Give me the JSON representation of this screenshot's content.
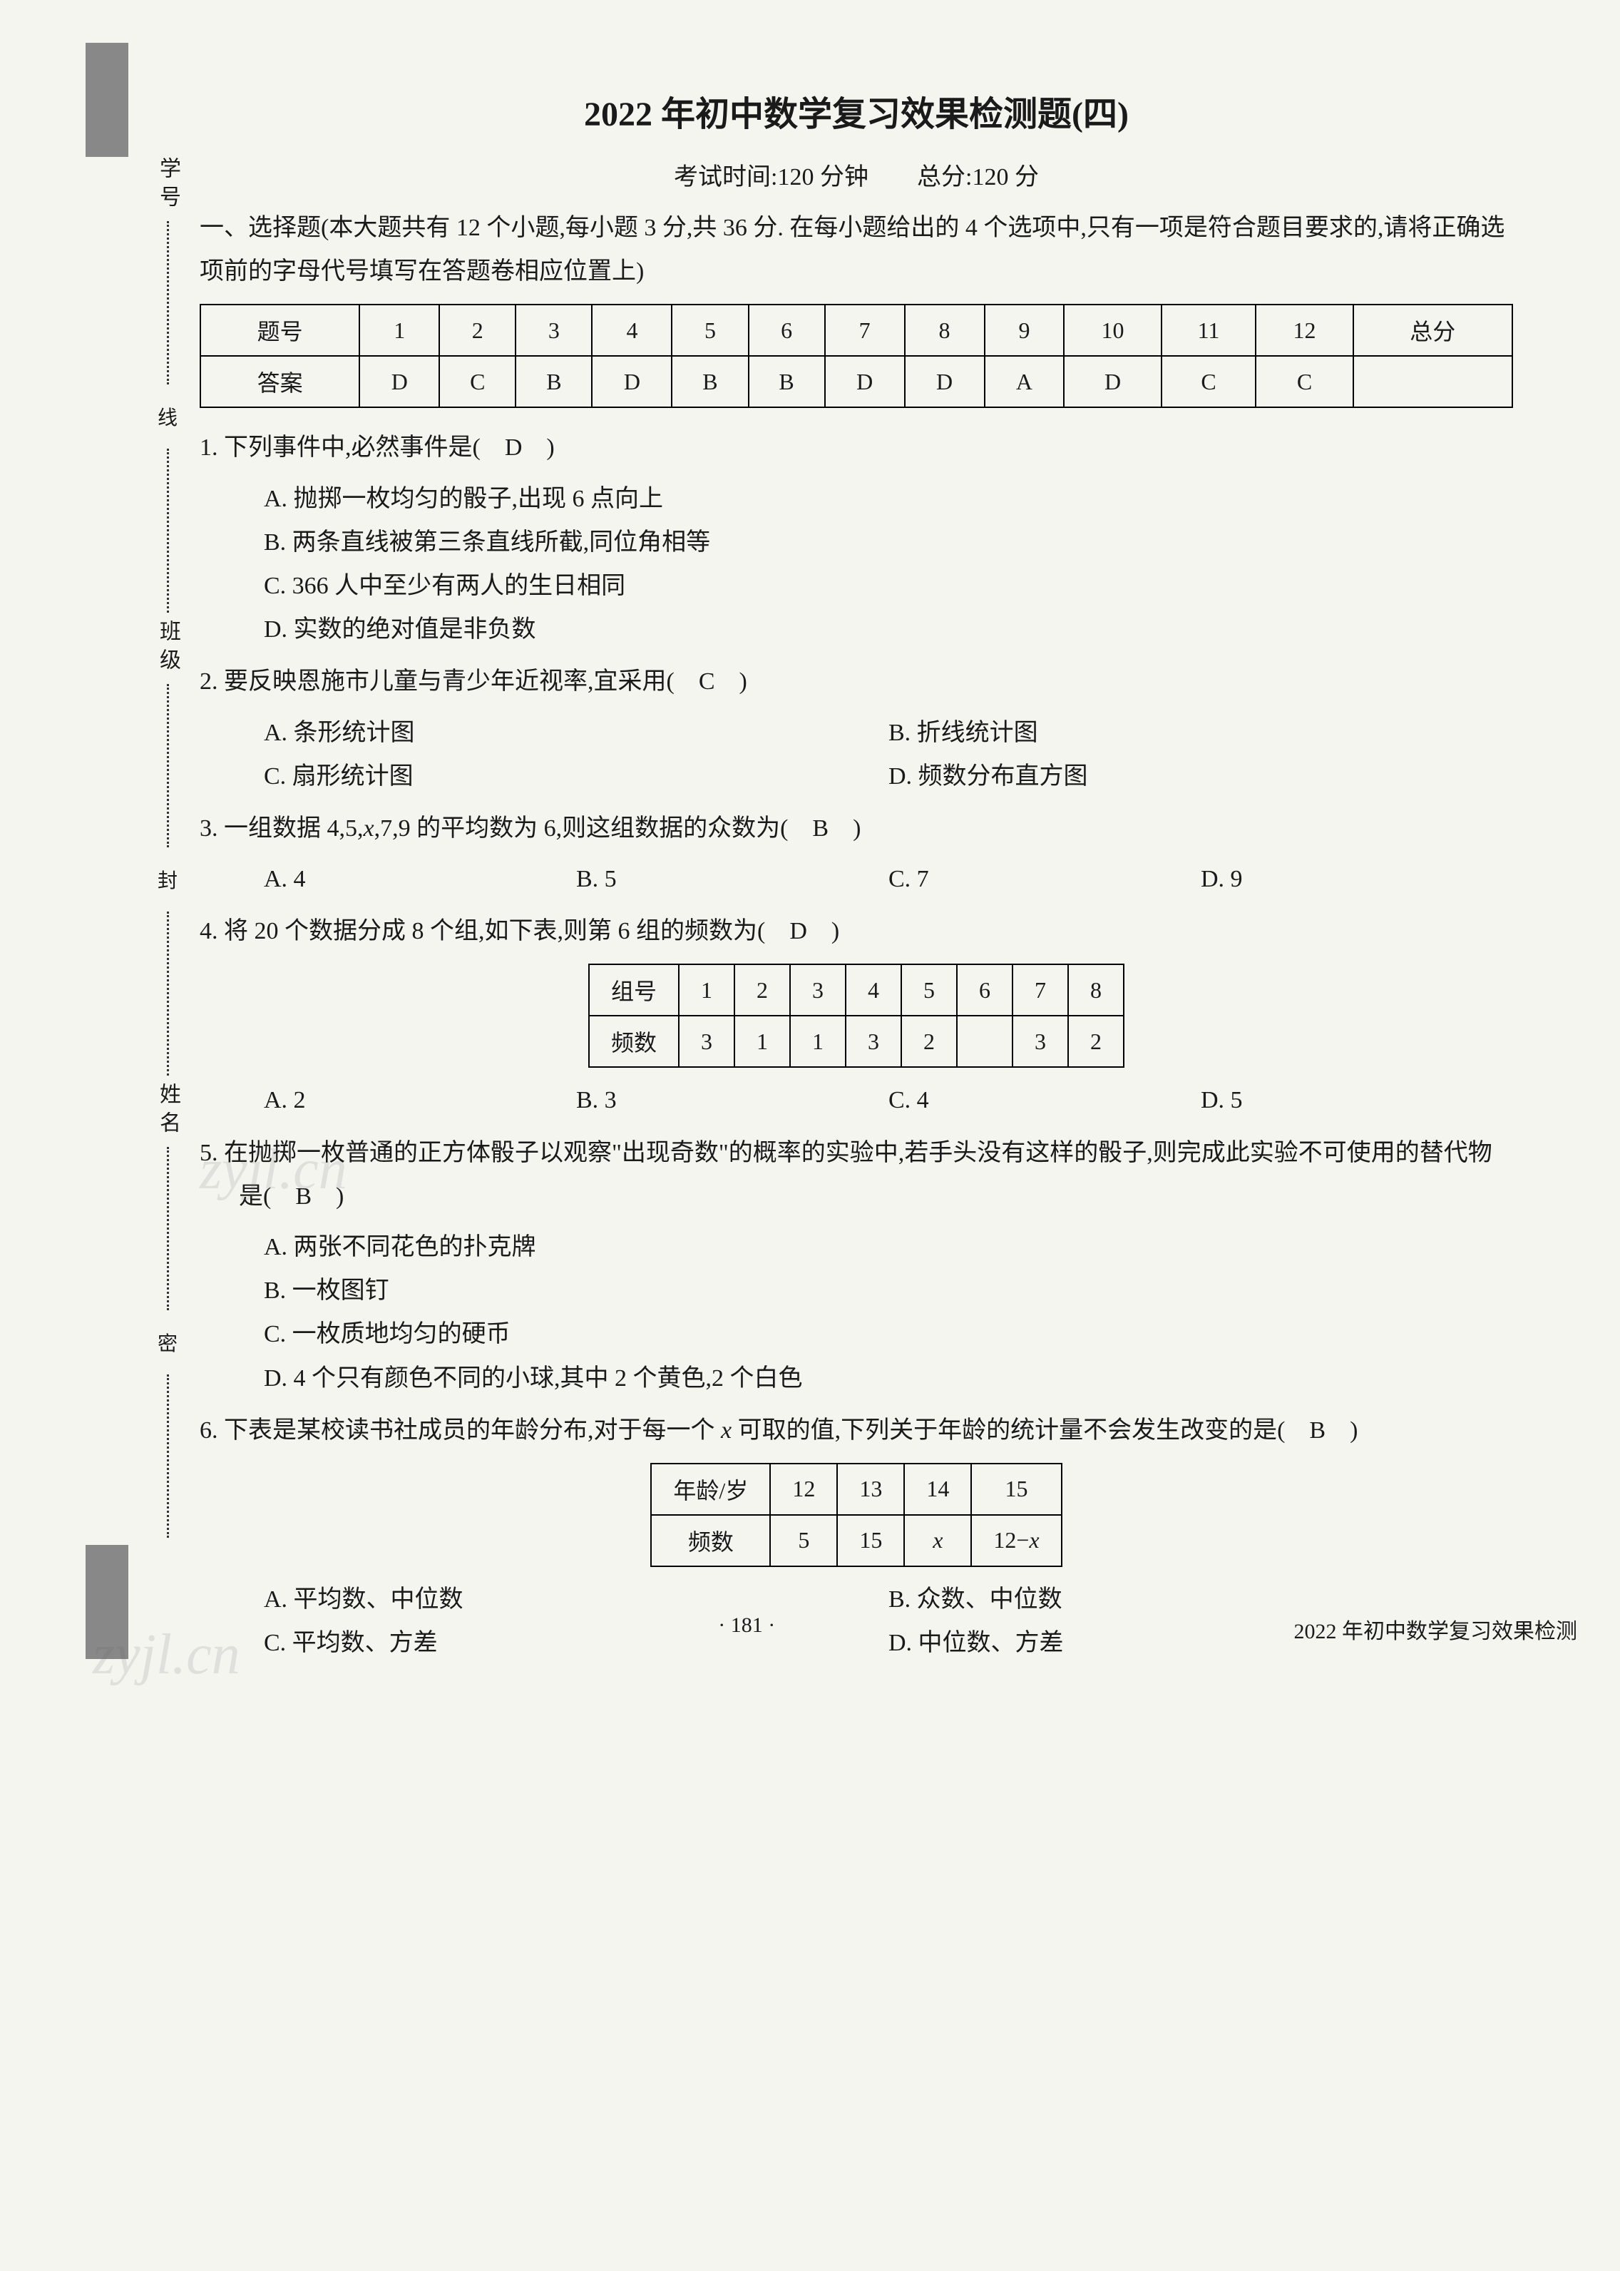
{
  "title": "2022 年初中数学复习效果检测题(四)",
  "exam_info": "考试时间:120 分钟　　总分:120 分",
  "section_heading": "一、选择题(本大题共有 12 个小题,每小题 3 分,共 36 分. 在每小题给出的 4 个选项中,只有一项是符合题目要求的,请将正确选项前的字母代号填写在答题卷相应位置上)",
  "answer_table": {
    "header_label": "题号",
    "answer_label": "答案",
    "total_label": "总分",
    "numbers": [
      "1",
      "2",
      "3",
      "4",
      "5",
      "6",
      "7",
      "8",
      "9",
      "10",
      "11",
      "12"
    ],
    "answers": [
      "D",
      "C",
      "B",
      "D",
      "B",
      "B",
      "D",
      "D",
      "A",
      "D",
      "C",
      "C"
    ]
  },
  "q1": {
    "stem": "1. 下列事件中,必然事件是(　D　)",
    "a": "A. 抛掷一枚均匀的骰子,出现 6 点向上",
    "b": "B. 两条直线被第三条直线所截,同位角相等",
    "c": "C. 366 人中至少有两人的生日相同",
    "d": "D. 实数的绝对值是非负数"
  },
  "q2": {
    "stem": "2. 要反映恩施市儿童与青少年近视率,宜采用(　C　)",
    "a": "A. 条形统计图",
    "b": "B. 折线统计图",
    "c": "C. 扇形统计图",
    "d": "D. 频数分布直方图"
  },
  "q3": {
    "stem_prefix": "3. 一组数据 4,5,",
    "stem_var": "x",
    "stem_suffix": ",7,9 的平均数为 6,则这组数据的众数为(　B　)",
    "a": "A. 4",
    "b": "B. 5",
    "c": "C. 7",
    "d": "D. 9"
  },
  "q4": {
    "stem": "4. 将 20 个数据分成 8 个组,如下表,则第 6 组的频数为(　D　)",
    "row1_label": "组号",
    "row1": [
      "1",
      "2",
      "3",
      "4",
      "5",
      "6",
      "7",
      "8"
    ],
    "row2_label": "频数",
    "row2": [
      "3",
      "1",
      "1",
      "3",
      "2",
      "",
      "3",
      "2"
    ],
    "a": "A. 2",
    "b": "B. 3",
    "c": "C. 4",
    "d": "D. 5"
  },
  "q5": {
    "stem": "5. 在抛掷一枚普通的正方体骰子以观察\"出现奇数\"的概率的实验中,若手头没有这样的骰子,则完成此实验不可使用的替代物是(　B　)",
    "a": "A. 两张不同花色的扑克牌",
    "b": "B. 一枚图钉",
    "c": "C. 一枚质地均匀的硬币",
    "d": "D. 4 个只有颜色不同的小球,其中 2 个黄色,2 个白色"
  },
  "q6": {
    "stem_prefix": "6. 下表是某校读书社成员的年龄分布,对于每一个 ",
    "stem_var": "x",
    "stem_suffix": " 可取的值,下列关于年龄的统计量不会发生改变的是(　B　)",
    "row1_label": "年龄/岁",
    "row1": [
      "12",
      "13",
      "14",
      "15"
    ],
    "row2_label": "频数",
    "row2_0": "5",
    "row2_1": "15",
    "row2_2": "x",
    "row2_3_prefix": "12−",
    "row2_3_var": "x",
    "a": "A. 平均数、中位数",
    "b": "B. 众数、中位数",
    "c": "C. 平均数、方差",
    "d": "D. 中位数、方差"
  },
  "binding": {
    "xuehao": "学号",
    "banji": "班级",
    "xingming": "姓名",
    "xian": "线",
    "feng": "封",
    "mi": "密"
  },
  "footer": {
    "page_number": "· 181 ·",
    "right": "2022 年初中数学复习效果检测"
  },
  "watermark": "zyjl.cn"
}
